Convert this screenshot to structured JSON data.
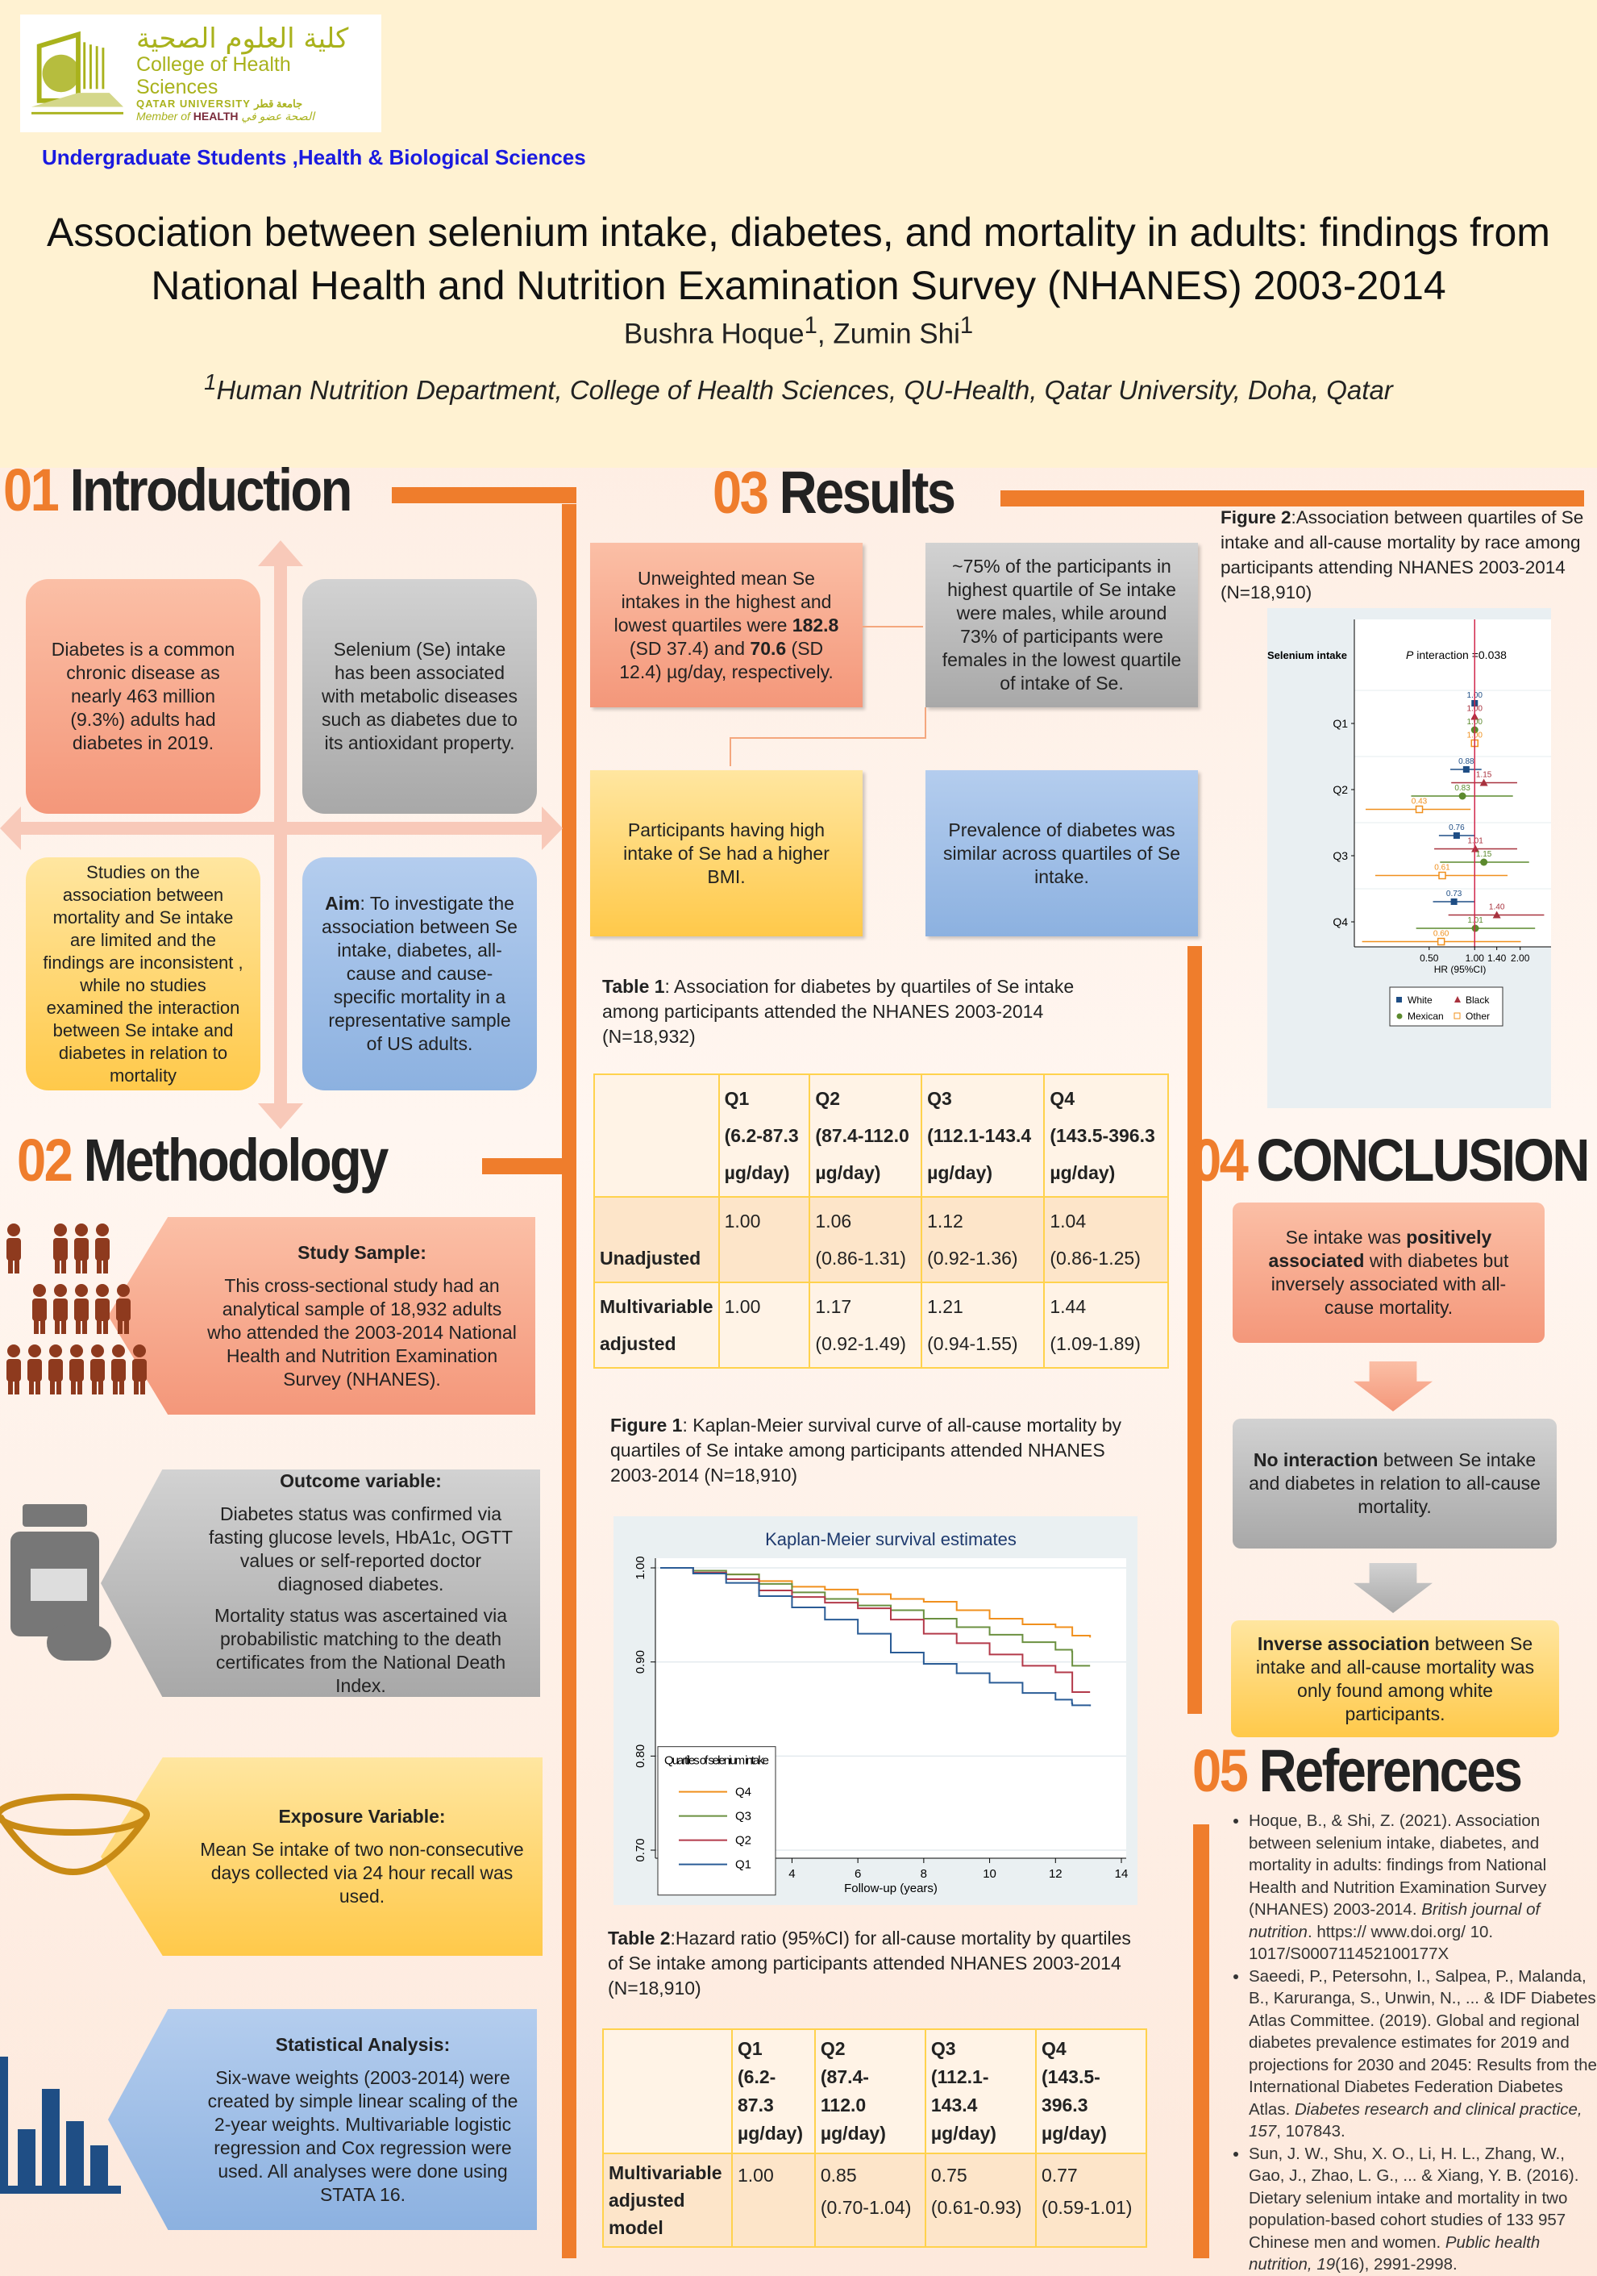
{
  "header": {
    "logo": {
      "arabic": "كلية العلوم الصحية",
      "english": "College of Health Sciences",
      "university": "QATAR UNIVERSITY جامعة قطر",
      "member_prefix": "Member of",
      "member_brand": "HEALTH",
      "member_arabic": "الصحة عضو في"
    },
    "department": "Undergraduate Students ,Health & Biological Sciences",
    "title_line1": "Association between selenium intake, diabetes, and mortality in adults: findings from",
    "title_line2": "National Health and Nutrition Examination Survey (NHANES) 2003-2014",
    "author1": "Bushra Hoque",
    "author2": "Zumin Shi",
    "sup": "1",
    "sep": ", ",
    "affiliation": "Human Nutrition Department, College of Health Sciences, QU-Health, Qatar University, Doha, Qatar"
  },
  "sections": {
    "intro": {
      "num": "01",
      "title": "Introduction"
    },
    "methods": {
      "num": "02",
      "title": "Methodology"
    },
    "results": {
      "num": "03",
      "title": "Results"
    },
    "conclusion": {
      "num": "04",
      "title": "CONCLUSION"
    },
    "references": {
      "num": "05",
      "title": "References"
    }
  },
  "intro": {
    "box1": "Diabetes is a common chronic disease as nearly 463 million (9.3%) adults had diabetes in 2019.",
    "box2": "Selenium (Se) intake has been associated with metabolic diseases such as diabetes due to its antioxidant property.",
    "box3": "Studies on the association between mortality and Se intake are limited and the findings are inconsistent , while no studies examined the interaction between Se intake and diabetes in relation to mortality",
    "box4_bold": "Aim",
    "box4": ": To investigate the association between Se intake, diabetes, all-cause and cause-specific mortality in a representative sample of US adults."
  },
  "methods": [
    {
      "title": "Study Sample:",
      "text": "This cross-sectional study had an analytical sample of 18,932 adults who attended the 2003-2014 National Health and Nutrition Examination Survey (NHANES).",
      "icon": "people-icon"
    },
    {
      "title": "Outcome variable:",
      "text": "Diabetes status was confirmed via fasting glucose levels, HbA1c, OGTT values or self-reported doctor diagnosed diabetes.",
      "text2": "Mortality status was ascertained via probabilistic matching to the death certificates from the National Death Index.",
      "icon": "pill-bottle-icon"
    },
    {
      "title": "Exposure Variable:",
      "text": "Mean Se intake of two non-consecutive days collected via 24 hour recall was used.",
      "icon": "bowl-icon"
    },
    {
      "title": "Statistical Analysis:",
      "text": "Six-wave weights (2003-2014) were created by simple linear scaling of the 2-year weights. Multivariable logistic regression and Cox regression were used. All analyses were done using STATA 16.",
      "icon": "bar-chart-icon"
    }
  ],
  "results": {
    "boxA": {
      "t1": "Unweighted mean Se intakes in the highest and lowest quartiles were ",
      "b1": "182.8",
      "t2": " (SD 37.4) and ",
      "b2": "70.6",
      "t3": " (SD 12.4) µg/day, respectively."
    },
    "boxB": "~75% of the participants in highest quartile of Se intake were males, while around 73% of participants were females in the lowest quartile of intake of Se.",
    "boxC": "Participants having high intake of Se had a higher BMI.",
    "boxD": "Prevalence of diabetes was similar across quartiles of Se intake."
  },
  "tables": {
    "table1": {
      "label": "Table 1",
      "caption": ": Association for diabetes by quartiles of Se intake among participants attended the NHANES 2003-2014 (N=18,932)",
      "headers": [
        {
          "q": "Q1",
          "r1": "(6.2-87.3",
          "r2": "µg/day)"
        },
        {
          "q": "Q2",
          "r1": "(87.4-112.0",
          "r2": "µg/day)"
        },
        {
          "q": "Q3",
          "r1": "(112.1-143.4",
          "r2": "µg/day)"
        },
        {
          "q": "Q4",
          "r1": "(143.5-396.3",
          "r2": "µg/day)"
        }
      ],
      "rows": [
        {
          "label": "Unadjusted",
          "cells": [
            {
              "hr": "1.00",
              "ci": ""
            },
            {
              "hr": "1.06",
              "ci": "(0.86-1.31)"
            },
            {
              "hr": "1.12",
              "ci": "(0.92-1.36)"
            },
            {
              "hr": "1.04",
              "ci": "(0.86-1.25)"
            }
          ]
        },
        {
          "label1": "Multivariable",
          "label2": "adjusted",
          "cells": [
            {
              "hr": "1.00",
              "ci": ""
            },
            {
              "hr": "1.17",
              "ci": "(0.92-1.49)"
            },
            {
              "hr": "1.21",
              "ci": "(0.94-1.55)"
            },
            {
              "hr": "1.44",
              "ci": "(1.09-1.89)"
            }
          ]
        }
      ]
    },
    "table2": {
      "label": "Table 2",
      "caption": ":Hazard ratio (95%CI) for all-cause mortality by quartiles of Se intake among participants attended NHANES 2003-2014 (N=18,910)",
      "headers": [
        {
          "q": "Q1",
          "r1": "(6.2-",
          "r2": "87.3",
          "r3": "µg/day)"
        },
        {
          "q": "Q2",
          "r1": "(87.4-",
          "r2": "112.0",
          "r3": "µg/day)"
        },
        {
          "q": "Q3",
          "r1": "(112.1-",
          "r2": "143.4",
          "r3": "µg/day)"
        },
        {
          "q": "Q4",
          "r1": "(143.5-",
          "r2": "396.3",
          "r3": "µg/day)"
        }
      ],
      "row": {
        "label1": "Multivariable",
        "label2": "adjusted",
        "label3": "model",
        "cells": [
          {
            "hr": "1.00",
            "ci": ""
          },
          {
            "hr": "0.85",
            "ci": "(0.70-1.04)"
          },
          {
            "hr": "0.75",
            "ci": "(0.61-0.93)"
          },
          {
            "hr": "0.77",
            "ci": "(0.59-1.01)"
          }
        ]
      }
    }
  },
  "figure1_caption": {
    "label": "Figure 1",
    "text": ": Kaplan-Meier survival curve of all-cause mortality by quartiles of Se intake among participants attended NHANES 2003-2014 (N=18,910)"
  },
  "figure2_caption": {
    "label": "Figure 2",
    "text": ":Association between quartiles of Se intake and all-cause mortality by race among participants attending NHANES 2003-2014 (N=18,910)"
  },
  "chart_data": [
    {
      "type": "line",
      "title": "Kaplan-Meier survival estimates",
      "xlabel": "Follow-up (years)",
      "ylabel": "",
      "xlim": [
        0,
        14
      ],
      "ylim": [
        0.7,
        1.0
      ],
      "xticks": [
        "0",
        "2",
        "4",
        "6",
        "8",
        "10",
        "12",
        "14"
      ],
      "yticks": [
        "0.70",
        "0.80",
        "0.90",
        "1.00"
      ],
      "grid": true,
      "legend_title": "Quartiles of selenium intake",
      "legend_position": "bottom-left",
      "x": [
        0,
        1,
        2,
        3,
        4,
        5,
        6,
        7,
        8,
        9,
        10,
        11,
        12,
        12.5,
        12.51,
        13.05
      ],
      "series": [
        {
          "name": "Q4",
          "color": "#f0901e",
          "values": [
            1.0,
            0.997,
            0.993,
            0.986,
            0.98,
            0.977,
            0.972,
            0.967,
            0.964,
            0.955,
            0.946,
            0.94,
            0.937,
            0.937,
            0.928,
            0.926
          ]
        },
        {
          "name": "Q3",
          "color": "#6b9040",
          "values": [
            1.0,
            0.997,
            0.993,
            0.983,
            0.974,
            0.967,
            0.96,
            0.955,
            0.946,
            0.937,
            0.929,
            0.921,
            0.913,
            0.911,
            0.896,
            0.896
          ]
        },
        {
          "name": "Q2",
          "color": "#b33a4a",
          "values": [
            1.0,
            0.995,
            0.988,
            0.976,
            0.969,
            0.963,
            0.957,
            0.945,
            0.93,
            0.92,
            0.908,
            0.896,
            0.889,
            0.889,
            0.868,
            0.868
          ]
        },
        {
          "name": "Q1",
          "color": "#2a5c96",
          "values": [
            1.0,
            0.994,
            0.984,
            0.97,
            0.958,
            0.945,
            0.93,
            0.91,
            0.898,
            0.888,
            0.878,
            0.867,
            0.86,
            0.856,
            0.854,
            0.853
          ]
        }
      ]
    },
    {
      "type": "scatter",
      "subtype": "forest",
      "title": "",
      "row_header": "Selenium intake",
      "annotation_italic": "P",
      "annotation": " interaction =0.038",
      "xlabel": "HR (95%CI)",
      "xscale": "log",
      "xlim": [
        0.16,
        3.2
      ],
      "xticks": [
        "0.50",
        "1.00",
        "1.40",
        "2.00"
      ],
      "reference_line": 1.0,
      "categories": [
        "Q1",
        "Q2",
        "Q3",
        "Q4"
      ],
      "legend_position": "bottom",
      "series": [
        {
          "name": "White",
          "color": "#1f4e85",
          "marker": "square",
          "hr": [
            1.0,
            0.88,
            0.76,
            0.73
          ],
          "lo": [
            1.0,
            0.69,
            0.58,
            0.53
          ],
          "hi": [
            1.0,
            1.11,
            1.0,
            1.0
          ],
          "labels": [
            "1.00",
            "0.88",
            "0.76",
            "0.73"
          ]
        },
        {
          "name": "Black",
          "color": "#a8323e",
          "marker": "triangle",
          "hr": [
            1.0,
            1.15,
            1.01,
            1.4
          ],
          "lo": [
            1.0,
            0.7,
            0.54,
            0.67
          ],
          "hi": [
            1.0,
            1.91,
            1.91,
            2.88
          ],
          "labels": [
            "1.00",
            "1.15",
            "1.01",
            "1.40"
          ]
        },
        {
          "name": "Mexican",
          "color": "#5c8a2e",
          "marker": "circle",
          "hr": [
            1.0,
            0.83,
            1.15,
            1.01
          ],
          "lo": [
            1.0,
            0.38,
            0.59,
            0.41
          ],
          "hi": [
            1.0,
            1.79,
            2.29,
            2.51
          ],
          "labels": [
            "1.00",
            "0.83",
            "1.15",
            "1.01"
          ]
        },
        {
          "name": "Other",
          "color": "#f0901e",
          "marker": "hollow-square",
          "hr": [
            1.0,
            0.43,
            0.61,
            0.6
          ],
          "lo": [
            1.0,
            0.19,
            0.22,
            0.18
          ],
          "hi": [
            1.0,
            0.94,
            1.65,
            2.02
          ],
          "labels": [
            "1.00",
            "0.43",
            "0.61",
            "0.60"
          ]
        }
      ]
    }
  ],
  "conclusion": {
    "c1": {
      "t1": "Se intake was ",
      "b1": "positively associated",
      "t2": " with diabetes but inversely associated with all-cause mortality."
    },
    "c2": {
      "b1": "No interaction",
      "t1": " between Se intake and diabetes in relation to all-cause mortality."
    },
    "c3": {
      "b1": "Inverse association",
      "t1": " between Se intake and all-cause mortality was only found among white participants."
    }
  },
  "references": [
    {
      "t1": "Hoque, B., & Shi, Z. (2021). Association between selenium intake, diabetes, and mortality in adults: findings from National Health and Nutrition Examination Survey (NHANES) 2003-2014. ",
      "i1": "British journal of  nutrition",
      "t2": ". https:// www.doi.org/ 10. 1017/S000711452100177X"
    },
    {
      "t1": "Saeedi, P., Petersohn, I., Salpea, P., Malanda, B., Karuranga, S., Unwin, N., ... & IDF Diabetes Atlas Committee. (2019). Global and regional diabetes prevalence estimates for 2019 and projections for 2030 and 2045: Results from the International Diabetes Federation Diabetes Atlas. ",
      "i1": "Diabetes research and clinical practice, 157",
      "t2": ", 107843."
    },
    {
      "t1": "Sun, J. W., Shu, X. O., Li, H. L., Zhang, W., Gao, J., Zhao, L. G., ... & Xiang, Y. B. (2016). Dietary selenium intake and mortality in two population-based cohort studies of 133 957 Chinese men and women. ",
      "i1": "Public health nutrition, 19",
      "t2": "(16), 2991-2998."
    }
  ]
}
